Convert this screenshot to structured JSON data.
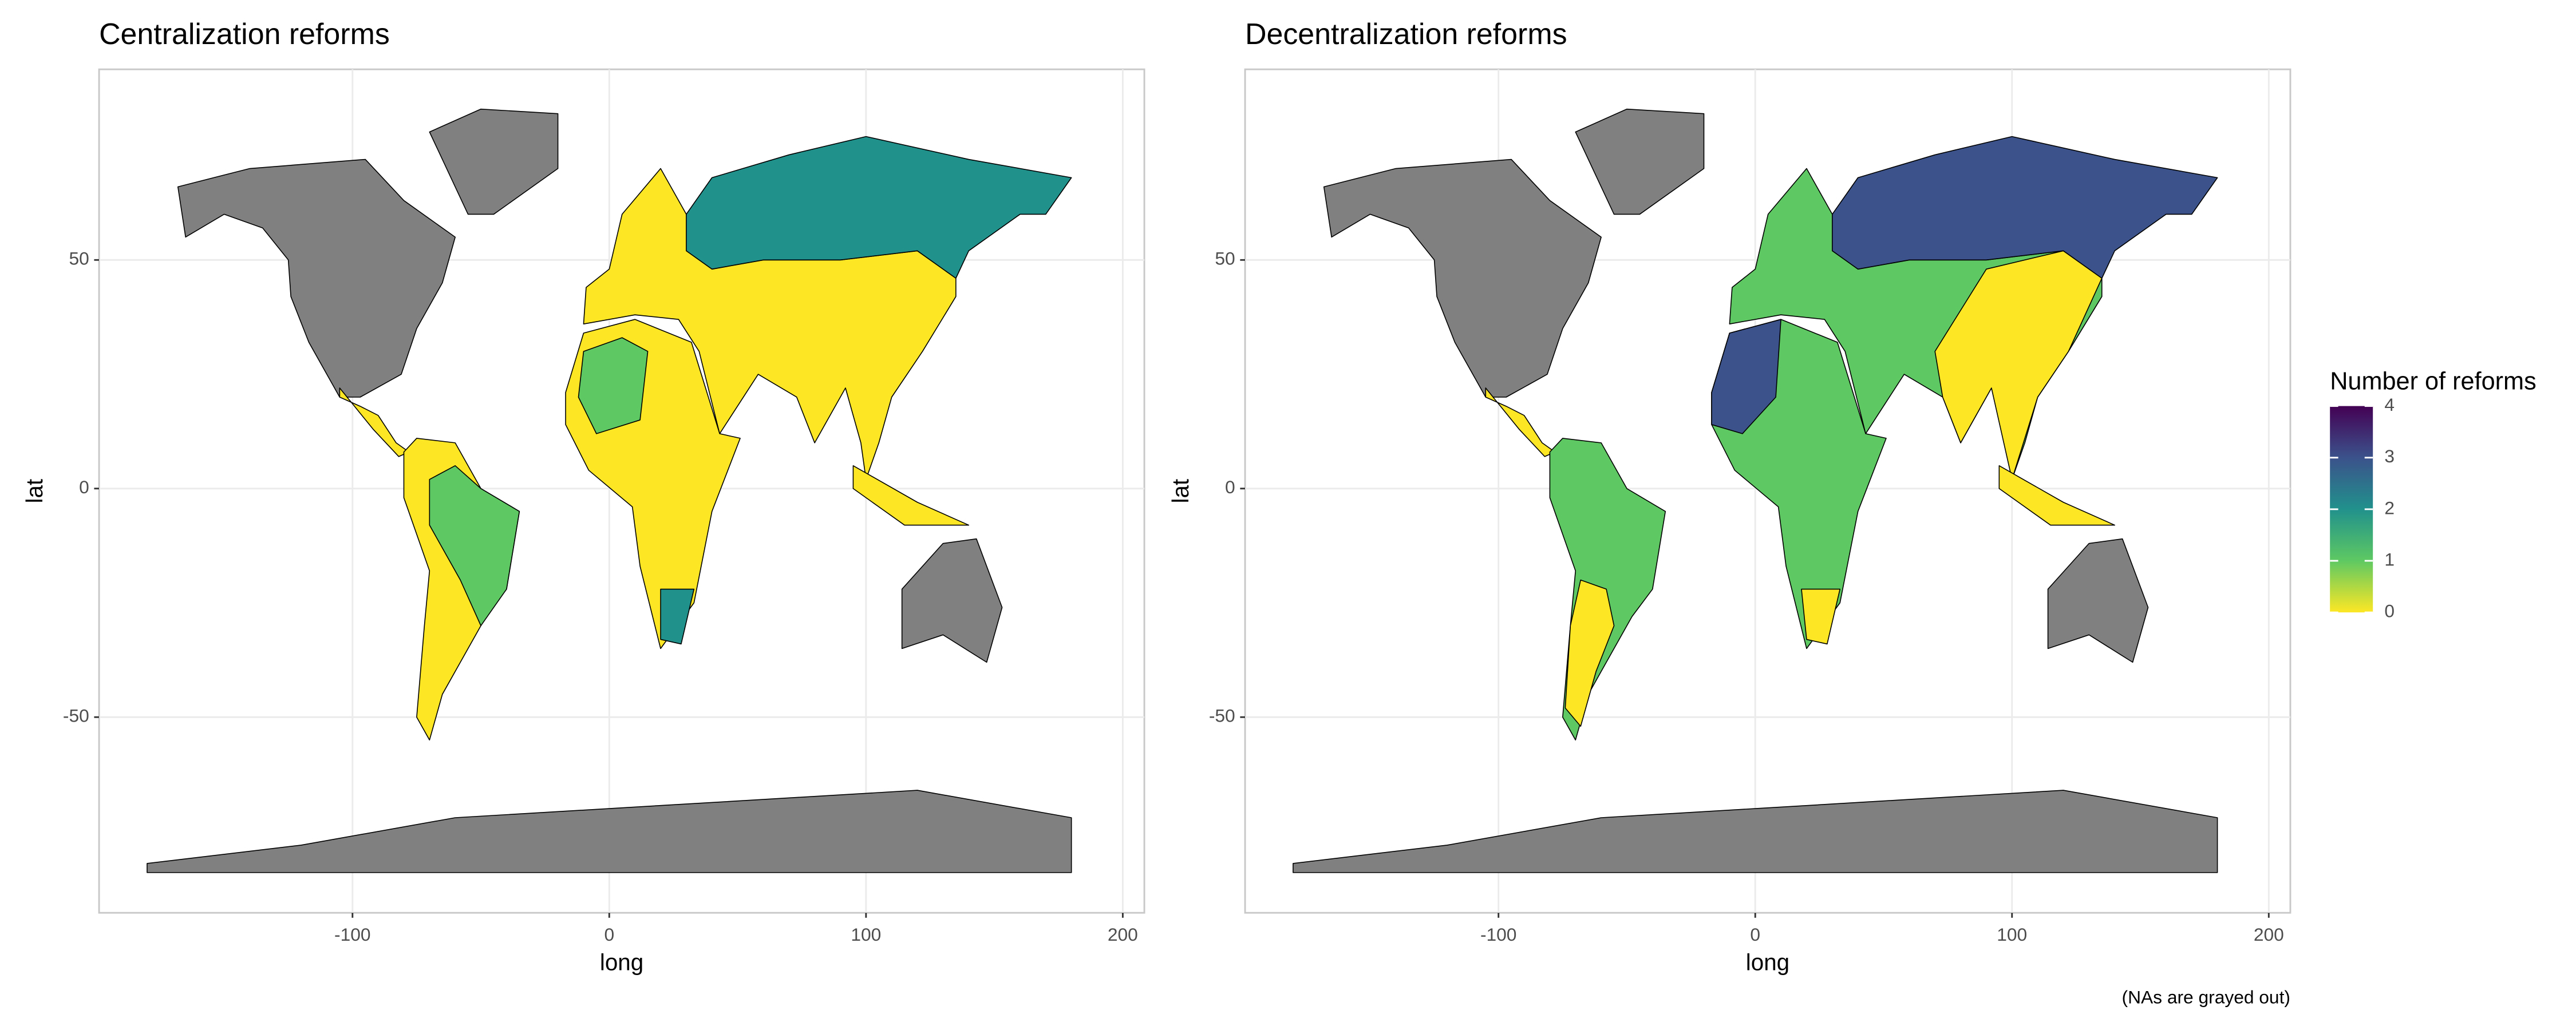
{
  "chart_data": [
    {
      "type": "map",
      "title": "Centralization reforms",
      "xlabel": "long",
      "ylabel": "lat",
      "xlim": [
        -198.7,
        208.4
      ],
      "ylim": [
        -92.8,
        91.7
      ],
      "xticks": [
        -100,
        0,
        100,
        200
      ],
      "yticks": [
        -50,
        0,
        50
      ],
      "grid": true
    },
    {
      "type": "map",
      "title": "Decentralization reforms",
      "xlabel": "long",
      "ylabel": "lat",
      "xlim": [
        -198.7,
        208.4
      ],
      "ylim": [
        -92.8,
        91.7
      ],
      "xticks": [
        -100,
        0,
        100,
        200
      ],
      "yticks": [
        -50,
        0,
        50
      ],
      "grid": true
    }
  ],
  "legend": {
    "title": "Number of reforms",
    "lim": [
      0,
      4
    ],
    "ticks": [
      0,
      1,
      2,
      3,
      4
    ],
    "colors": [
      "#fde725",
      "#5ec962",
      "#21918c",
      "#3b528b",
      "#440154"
    ]
  },
  "caption": "(NAs are grayed out)"
}
